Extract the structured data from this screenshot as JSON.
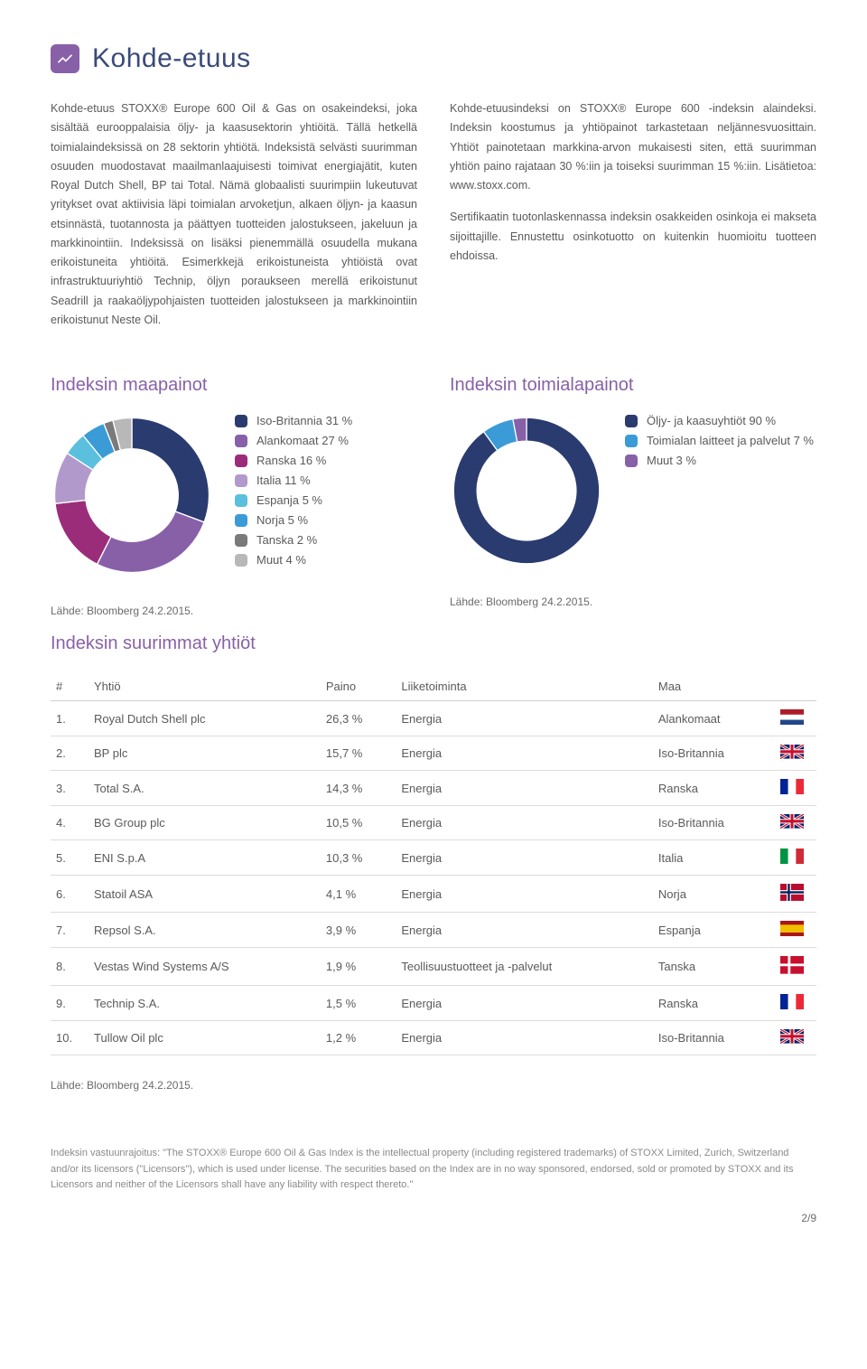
{
  "title": "Kohde-etuus",
  "intro_left": "Kohde-etuus STOXX® Europe 600 Oil & Gas on osakeindeksi, joka sisältää eurooppalaisia öljy- ja kaasusektorin yhtiöitä. Tällä hetkellä toimialaindeksissä on 28 sektorin yhtiötä. Indeksistä selvästi suurimman osuuden muodostavat maailmanlaajuisesti toimivat energiajätit, kuten Royal Dutch Shell, BP tai Total. Nämä globaalisti suurimpiin lukeutuvat yritykset ovat aktiivisia läpi toimialan arvoketjun, alkaen öljyn- ja kaasun etsinnästä, tuotannosta ja päättyen tuotteiden jalostukseen, jakeluun ja markkinointiin. Indeksissä on lisäksi pienemmällä osuudella mukana erikoistuneita yhtiöitä. Esimerkkejä erikoistuneista yhtiöistä ovat infrastruktuuriyhtiö Technip, öljyn poraukseen merellä erikoistunut Seadrill ja raakaöljypohjaisten tuotteiden jalostukseen ja markkinointiin erikoistunut Neste Oil.",
  "intro_right": "Kohde-etuusindeksi on STOXX® Europe 600 -indeksin alaindeksi. Indeksin koostumus ja yhtiöpainot tarkastetaan neljännesvuosittain. Yhtiöt painotetaan markkina-arvon mukaisesti siten, että suurimman yhtiön paino rajataan 30 %:iin ja toiseksi suurimman 15 %:iin. Lisätietoa: www.stoxx.com.\n\nSertifikaatin tuotonlaskennassa indeksin osakkeiden osinkoja ei makseta sijoittajille. Ennustettu osinkotuotto on kuitenkin huomioitu tuotteen ehdoissa.",
  "country_chart": {
    "title": "Indeksin maapainot",
    "type": "donut",
    "inner_ratio": 0.6,
    "items": [
      {
        "label": "Iso-Britannia 31 %",
        "value": 31,
        "color": "#2a3b6f"
      },
      {
        "label": "Alankomaat 27 %",
        "value": 27,
        "color": "#8860a8"
      },
      {
        "label": "Ranska 16 %",
        "value": 16,
        "color": "#9b2c7a"
      },
      {
        "label": "Italia 11 %",
        "value": 11,
        "color": "#b299cc"
      },
      {
        "label": "Espanja 5 %",
        "value": 5,
        "color": "#5bc0de"
      },
      {
        "label": "Norja 5 %",
        "value": 5,
        "color": "#3a9bd6"
      },
      {
        "label": "Tanska 2 %",
        "value": 2,
        "color": "#7a7a7a"
      },
      {
        "label": "Muut 4 %",
        "value": 4,
        "color": "#b8b8b8"
      }
    ],
    "source": "Lähde: Bloomberg 24.2.2015."
  },
  "sector_chart": {
    "title": "Indeksin toimialapainot",
    "type": "donut",
    "inner_ratio": 0.68,
    "items": [
      {
        "label": "Öljy- ja kaasuyhtiöt 90 %",
        "value": 90,
        "color": "#2a3b6f"
      },
      {
        "label": "Toimialan laitteet ja palvelut 7 %",
        "value": 7,
        "color": "#3a9bd6"
      },
      {
        "label": "Muut 3 %",
        "value": 3,
        "color": "#8860a8"
      }
    ],
    "source": "Lähde: Bloomberg 24.2.2015."
  },
  "table": {
    "title": "Indeksin suurimmat yhtiöt",
    "columns": [
      "#",
      "Yhtiö",
      "Paino",
      "Liiketoiminta",
      "Maa"
    ],
    "rows": [
      {
        "n": "1.",
        "company": "Royal Dutch Shell plc",
        "weight": "26,3 %",
        "business": "Energia",
        "country": "Alankomaat",
        "flag": "nl"
      },
      {
        "n": "2.",
        "company": "BP plc",
        "weight": "15,7 %",
        "business": "Energia",
        "country": "Iso-Britannia",
        "flag": "gb"
      },
      {
        "n": "3.",
        "company": "Total S.A.",
        "weight": "14,3 %",
        "business": "Energia",
        "country": "Ranska",
        "flag": "fr"
      },
      {
        "n": "4.",
        "company": "BG Group plc",
        "weight": "10,5 %",
        "business": "Energia",
        "country": "Iso-Britannia",
        "flag": "gb"
      },
      {
        "n": "5.",
        "company": "ENI S.p.A",
        "weight": "10,3 %",
        "business": "Energia",
        "country": "Italia",
        "flag": "it"
      },
      {
        "n": "6.",
        "company": "Statoil ASA",
        "weight": "4,1 %",
        "business": "Energia",
        "country": "Norja",
        "flag": "no"
      },
      {
        "n": "7.",
        "company": "Repsol S.A.",
        "weight": "3,9 %",
        "business": "Energia",
        "country": "Espanja",
        "flag": "es"
      },
      {
        "n": "8.",
        "company": "Vestas Wind Systems A/S",
        "weight": "1,9 %",
        "business": "Teollisuustuotteet ja -palvelut",
        "country": "Tanska",
        "flag": "dk"
      },
      {
        "n": "9.",
        "company": "Technip S.A.",
        "weight": "1,5 %",
        "business": "Energia",
        "country": "Ranska",
        "flag": "fr"
      },
      {
        "n": "10.",
        "company": "Tullow Oil plc",
        "weight": "1,2 %",
        "business": "Energia",
        "country": "Iso-Britannia",
        "flag": "gb"
      }
    ],
    "source": "Lähde: Bloomberg 24.2.2015."
  },
  "disclaimer": "Indeksin vastuunrajoitus: \"The STOXX® Europe 600 Oil & Gas Index is the intellectual property (including registered trademarks) of STOXX Limited, Zurich, Switzerland and/or its licensors (\"Licensors\"), which is used under license. The securities based on the Index are in no way sponsored, endorsed, sold or promoted by STOXX and its Licensors and neither of the Licensors shall have any liability with respect thereto.\"",
  "page": "2/9"
}
